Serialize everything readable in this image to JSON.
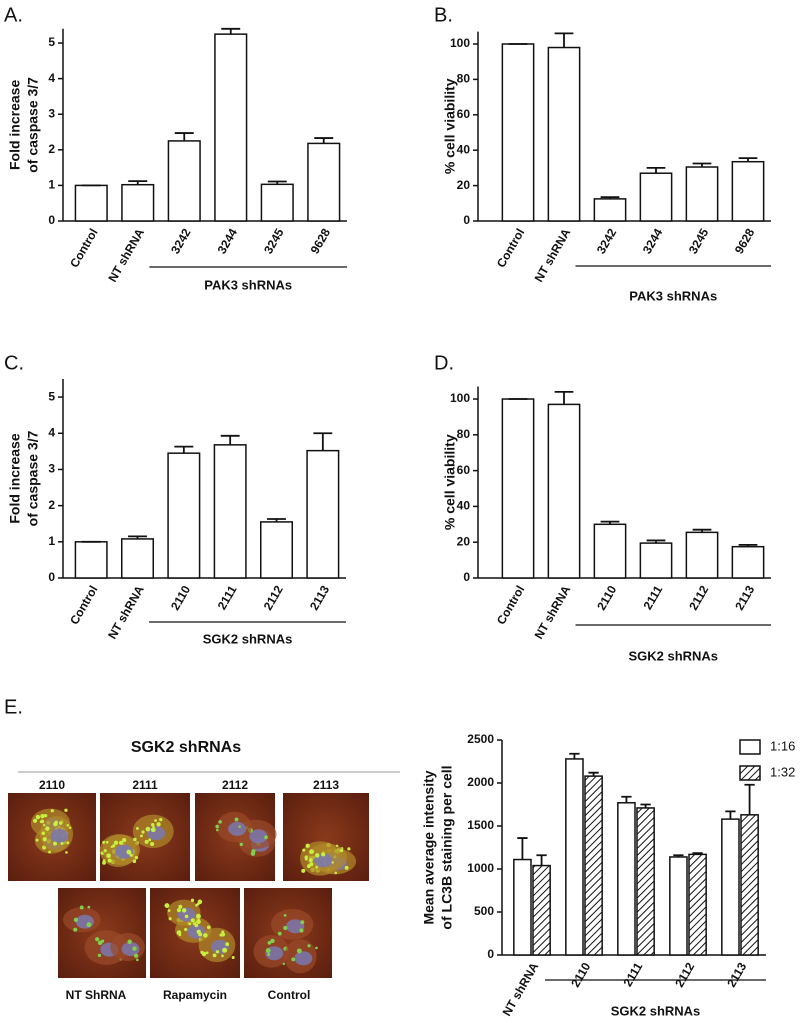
{
  "panel_labels": [
    "A.",
    "B.",
    "C.",
    "D.",
    "E."
  ],
  "image_panel": {
    "title": "SGK2 shRNAs",
    "top_labels": [
      "2110",
      "2111",
      "2112",
      "2113"
    ],
    "bottom_labels": [
      "NT ShRNA",
      "Rapamycin",
      "Control"
    ]
  },
  "chart_data": [
    {
      "type": "bar",
      "y_label": [
        "Fold increase",
        "of caspase 3/7"
      ],
      "categories": [
        "Control",
        "NT shRNA",
        "3242",
        "3244",
        "3245",
        "9628"
      ],
      "values": [
        1,
        1.02,
        2.25,
        5.25,
        1.03,
        2.18
      ],
      "errors": [
        0,
        0.1,
        0.22,
        0.15,
        0.08,
        0.15
      ],
      "color": "#ffffff",
      "ylim": [
        0,
        5.4
      ],
      "yticks": [
        0,
        1,
        2,
        3,
        4,
        5
      ],
      "group_label": "PAK3 shRNAs"
    },
    {
      "type": "bar",
      "y_label": [
        "% cell viability"
      ],
      "categories": [
        "Control",
        "NT shRNA",
        "3242",
        "3244",
        "3245",
        "9628"
      ],
      "values": [
        100,
        98,
        12.5,
        27,
        30.5,
        33.5
      ],
      "errors": [
        0,
        8,
        1,
        3,
        2,
        2
      ],
      "color": "#ffffff",
      "ylim": [
        0,
        107
      ],
      "yticks": [
        0,
        20,
        40,
        60,
        80,
        100
      ],
      "group_label": "PAK3 shRNAs"
    },
    {
      "type": "bar",
      "y_label": [
        "Fold increase",
        "of caspase 3/7"
      ],
      "categories": [
        "Control",
        "NT shRNA",
        "2110",
        "2111",
        "2112",
        "2113"
      ],
      "values": [
        1,
        1.08,
        3.45,
        3.68,
        1.55,
        3.52
      ],
      "errors": [
        0,
        0.07,
        0.18,
        0.25,
        0.08,
        0.48
      ],
      "color": "#ffffff",
      "ylim": [
        0,
        5.5
      ],
      "yticks": [
        0,
        1,
        2,
        3,
        4,
        5
      ],
      "group_label": "SGK2 shRNAs"
    },
    {
      "type": "bar",
      "y_label": [
        "% cell viability"
      ],
      "categories": [
        "Control",
        "NT shRNA",
        "2110",
        "2111",
        "2112",
        "2113"
      ],
      "values": [
        100,
        97,
        30,
        19.5,
        25.5,
        17.5
      ],
      "errors": [
        0,
        7,
        1.5,
        1.5,
        1.5,
        1
      ],
      "color": "#ffffff",
      "ylim": [
        0,
        107
      ],
      "yticks": [
        0,
        20,
        40,
        60,
        80,
        100
      ],
      "group_label": "SGK2 shRNAs"
    },
    {
      "type": "grouped_bar",
      "y_label": [
        "Mean average intensity",
        "of LC3B staining per cell"
      ],
      "categories": [
        "NT shRNA",
        "2110",
        "2111",
        "2112",
        "2113"
      ],
      "series": [
        {
          "name": "1:16",
          "color": "#ffffff",
          "hatch": false,
          "values": [
            1110,
            2280,
            1770,
            1140,
            1580
          ],
          "errors": [
            250,
            60,
            70,
            20,
            90
          ]
        },
        {
          "name": "1:32",
          "color": "#ffffff",
          "hatch": true,
          "values": [
            1040,
            2080,
            1710,
            1170,
            1630
          ],
          "errors": [
            120,
            40,
            40,
            15,
            350
          ]
        }
      ],
      "ylim": [
        0,
        2500
      ],
      "yticks": [
        0,
        500,
        1000,
        1500,
        2000,
        2500
      ],
      "legend": "top-right",
      "group_label": "SGK2 shRNAs"
    }
  ]
}
